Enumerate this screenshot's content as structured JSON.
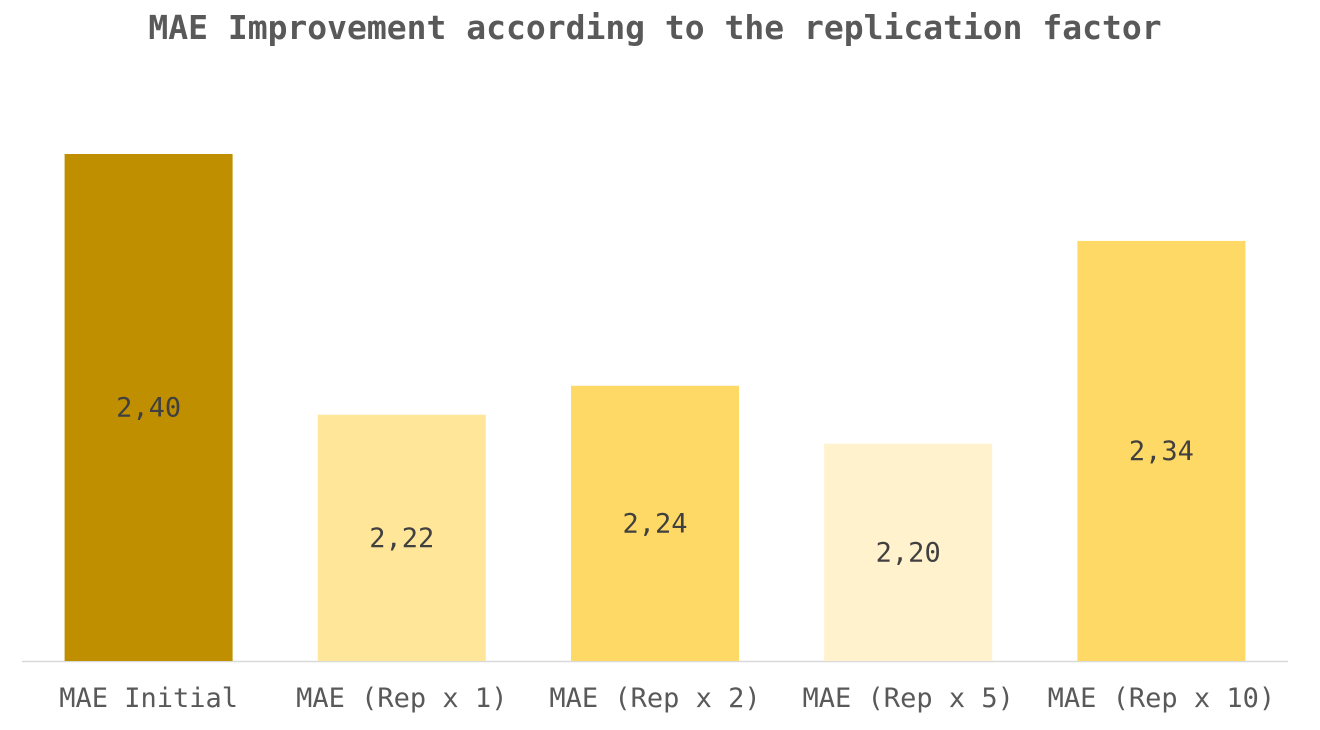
{
  "chart_data": {
    "type": "bar",
    "title": "MAE Improvement according to the replication factor",
    "categories": [
      "MAE Initial",
      "MAE (Rep x 1)",
      "MAE (Rep x 2)",
      "MAE (Rep x 5)",
      "MAE (Rep x 10)"
    ],
    "values": [
      2.4,
      2.22,
      2.24,
      2.2,
      2.34
    ],
    "data_labels": [
      "2,40",
      "2,22",
      "2,24",
      "2,20",
      "2,34"
    ],
    "colors": [
      "#BF8F00",
      "#FFE699",
      "#FFD966",
      "#FFF2CC",
      "#FFD966"
    ],
    "xlabel": "",
    "ylabel": "",
    "ylim": [
      2.05,
      2.4
    ],
    "grid": false,
    "legend": "none",
    "axis_color": "#D9D9D9"
  }
}
